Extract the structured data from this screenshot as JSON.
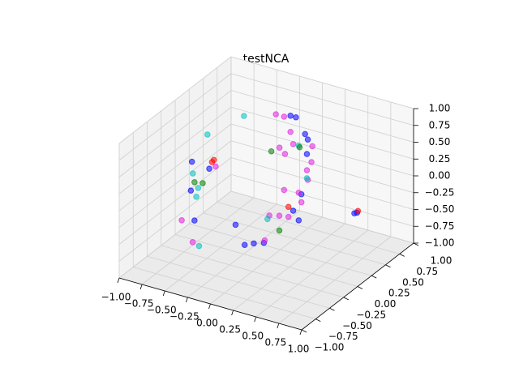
{
  "chart_data": {
    "type": "scatter3d",
    "title": "testNCA",
    "xlim": [
      -1,
      1
    ],
    "ylim": [
      -1,
      1
    ],
    "zlim": [
      -1,
      1
    ],
    "xticks": [
      {
        "value": -1,
        "label": "−1.00"
      },
      {
        "value": -0.75,
        "label": "−0.75"
      },
      {
        "value": -0.5,
        "label": "−0.50"
      },
      {
        "value": -0.25,
        "label": "−0.25"
      },
      {
        "value": 0,
        "label": "0.00"
      },
      {
        "value": 0.25,
        "label": "0.25"
      },
      {
        "value": 0.5,
        "label": "0.50"
      },
      {
        "value": 0.75,
        "label": "0.75"
      },
      {
        "value": 1,
        "label": "1.00"
      }
    ],
    "yticks": [
      {
        "value": -1,
        "label": "−1.00"
      },
      {
        "value": -0.75,
        "label": "−0.75"
      },
      {
        "value": -0.5,
        "label": "−0.50"
      },
      {
        "value": -0.25,
        "label": "−0.25"
      },
      {
        "value": 0,
        "label": "0.00"
      },
      {
        "value": 0.25,
        "label": "0.25"
      },
      {
        "value": 0.5,
        "label": "0.50"
      },
      {
        "value": 0.75,
        "label": "0.75"
      },
      {
        "value": 1,
        "label": "1.00"
      }
    ],
    "zticks": [
      {
        "value": -1,
        "label": "−1.00"
      },
      {
        "value": -0.75,
        "label": "−0.75"
      },
      {
        "value": -0.5,
        "label": "−0.50"
      },
      {
        "value": -0.25,
        "label": "−0.25"
      },
      {
        "value": 0,
        "label": "0.00"
      },
      {
        "value": 0.25,
        "label": "0.25"
      },
      {
        "value": 0.5,
        "label": "0.50"
      },
      {
        "value": 0.75,
        "label": "0.75"
      },
      {
        "value": 1,
        "label": "1.00"
      }
    ],
    "grid": true,
    "series": [
      {
        "color": "#0000ff",
        "x": [
          0.08,
          0.14,
          0.24,
          0.27,
          -1.0,
          -0.46,
          -0.42,
          0.03,
          0.13,
          0.23,
          0.34,
          0.11,
          0.2,
          0.81,
          0.78,
          0.26,
          0.17,
          -0.81
        ],
        "y": [
          0.3,
          0.3,
          0.3,
          0.3,
          0.3,
          -0.6,
          -0.6,
          -0.6,
          -0.6,
          -0.6,
          -0.6,
          0.3,
          0.3,
          0.3,
          0.3,
          0.3,
          0.3,
          0.3
        ],
        "z": [
          0.99,
          0.99,
          0.78,
          0.71,
          -0.11,
          0.25,
          -0.18,
          -0.07,
          -0.33,
          -0.27,
          -0.22,
          -0.41,
          -0.13,
          -0.17,
          -0.19,
          0.49,
          -0.53,
          -0.14
        ]
      },
      {
        "color": "#e020e0",
        "x": [
          -0.08,
          0.01,
          0.08,
          0.11,
          -0.04,
          0.02,
          0.31,
          0.27,
          0.17,
          0.01,
          0.4,
          0.51,
          0.35,
          -0.44,
          -0.56,
          -0.74,
          0.26,
          0.32,
          0.2,
          0.61
        ],
        "y": [
          0.3,
          0.3,
          0.3,
          0.3,
          0.3,
          0.3,
          0.3,
          0.3,
          0.3,
          0.3,
          -0.6,
          -0.6,
          -0.6,
          -0.6,
          -0.6,
          0.3,
          0.3,
          0.3,
          0.3,
          -0.6
        ],
        "z": [
          0.95,
          0.95,
          0.75,
          0.58,
          0.47,
          0.4,
          0.39,
          0.11,
          -0.12,
          -0.14,
          0.21,
          0.25,
          -0.18,
          -0.51,
          -0.23,
          -0.08,
          0.25,
          0.63,
          -0.25,
          0.27
        ]
      },
      {
        "color": "#00bfbf",
        "x": [
          -0.43,
          -0.83,
          -0.99,
          -0.38,
          -0.37,
          0.38,
          0.26,
          0.17,
          -0.4
        ],
        "y": [
          0.3,
          0.3,
          0.3,
          -0.6,
          -0.6,
          -0.6,
          0.3,
          0.3,
          -0.6
        ],
        "z": [
          0.79,
          0.36,
          -0.28,
          0.32,
          -0.54,
          0.15,
          0.13,
          0.58,
          0.18
        ]
      },
      {
        "color": "#008000",
        "x": [
          -0.13,
          0.51,
          0.18,
          -0.42,
          -0.33
        ],
        "y": [
          0.3,
          -0.6,
          0.3,
          -0.6,
          -0.6
        ],
        "z": [
          0.38,
          0.03,
          0.56,
          0.39,
          0.41
        ]
      },
      {
        "color": "#ff0000",
        "x": [
          -0.76,
          0.61,
          0.82,
          -0.78
        ],
        "y": [
          0.3,
          -0.6,
          0.3,
          0.3
        ],
        "z": [
          0.01,
          0.42,
          -0.14,
          -0.03
        ]
      }
    ]
  }
}
